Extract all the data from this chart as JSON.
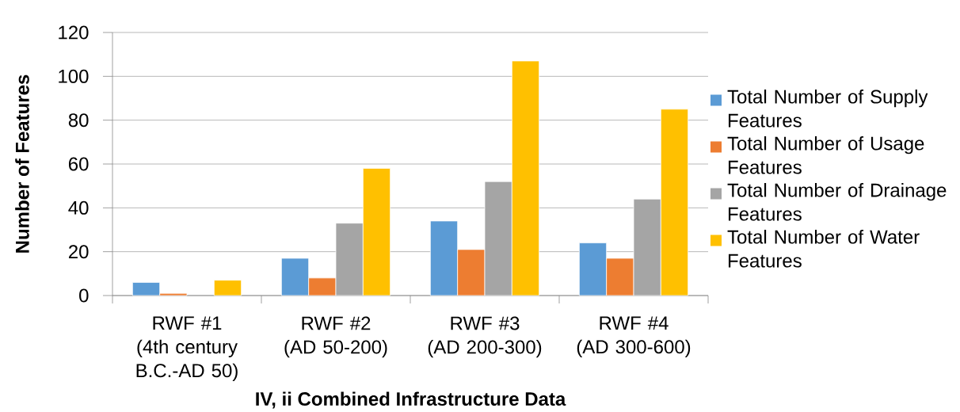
{
  "chart_data": {
    "type": "bar",
    "xlabel": "IV, ii Combined Infrastructure Data",
    "ylabel": "Number of Features",
    "categories": [
      "RWF #1 (4th century B.C.-AD 50)",
      "RWF #2 (AD 50-200)",
      "RWF #3 (AD 200-300)",
      "RWF #4 (AD 300-600)"
    ],
    "series": [
      {
        "name": "Total Number of Supply Features",
        "color": "#5b9bd5",
        "values": [
          6,
          17,
          34,
          24
        ]
      },
      {
        "name": "Total Number of Usage Features",
        "color": "#ed7d31",
        "values": [
          1,
          8,
          21,
          17
        ]
      },
      {
        "name": "Total Number of Drainage Features",
        "color": "#a5a5a5",
        "values": [
          null,
          33,
          52,
          44
        ]
      },
      {
        "name": "Total Number of Water Features",
        "color": "#ffc000",
        "values": [
          7,
          58,
          107,
          85
        ]
      }
    ],
    "ylim": [
      0,
      120
    ],
    "yticks": [
      0,
      20,
      40,
      60,
      80,
      100,
      120
    ],
    "grid": "y",
    "legend": "right"
  }
}
